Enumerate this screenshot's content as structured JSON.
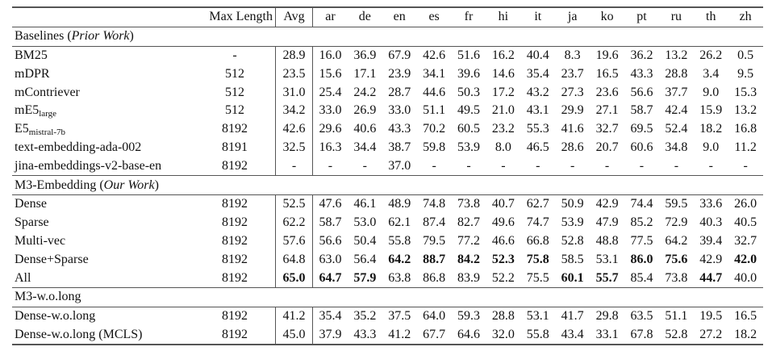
{
  "header": {
    "max_length": "Max Length",
    "avg": "Avg",
    "languages": [
      "ar",
      "de",
      "en",
      "es",
      "fr",
      "hi",
      "it",
      "ja",
      "ko",
      "pt",
      "ru",
      "th",
      "zh"
    ]
  },
  "sections": [
    {
      "title_prefix": "Baselines (",
      "title_italic": "Prior Work",
      "title_suffix": ")",
      "rows": [
        {
          "name": "BM25",
          "sub": "",
          "max_length": "-",
          "avg": "28.9",
          "values": [
            "16.0",
            "36.9",
            "67.9",
            "42.6",
            "51.6",
            "16.2",
            "40.4",
            "8.3",
            "19.6",
            "36.2",
            "13.2",
            "26.2",
            "0.5"
          ],
          "bold": []
        },
        {
          "name": "mDPR",
          "sub": "",
          "max_length": "512",
          "avg": "23.5",
          "values": [
            "15.6",
            "17.1",
            "23.9",
            "34.1",
            "39.6",
            "14.6",
            "35.4",
            "23.7",
            "16.5",
            "43.3",
            "28.8",
            "3.4",
            "9.5"
          ],
          "bold": []
        },
        {
          "name": "mContriever",
          "sub": "",
          "max_length": "512",
          "avg": "31.0",
          "values": [
            "25.4",
            "24.2",
            "28.7",
            "44.6",
            "50.3",
            "17.2",
            "43.2",
            "27.3",
            "23.6",
            "56.6",
            "37.7",
            "9.0",
            "15.3"
          ],
          "bold": []
        },
        {
          "name": "mE5",
          "sub": "large",
          "max_length": "512",
          "avg": "34.2",
          "values": [
            "33.0",
            "26.9",
            "33.0",
            "51.1",
            "49.5",
            "21.0",
            "43.1",
            "29.9",
            "27.1",
            "58.7",
            "42.4",
            "15.9",
            "13.2"
          ],
          "bold": []
        },
        {
          "name": "E5",
          "sub": "mistral-7b",
          "max_length": "8192",
          "avg": "42.6",
          "values": [
            "29.6",
            "40.6",
            "43.3",
            "70.2",
            "60.5",
            "23.2",
            "55.3",
            "41.6",
            "32.7",
            "69.5",
            "52.4",
            "18.2",
            "16.8"
          ],
          "bold": []
        },
        {
          "name": "text-embedding-ada-002",
          "sub": "",
          "max_length": "8191",
          "avg": "32.5",
          "values": [
            "16.3",
            "34.4",
            "38.7",
            "59.8",
            "53.9",
            "8.0",
            "46.5",
            "28.6",
            "20.7",
            "60.6",
            "34.8",
            "9.0",
            "11.2"
          ],
          "bold": []
        },
        {
          "name": "jina-embeddings-v2-base-en",
          "sub": "",
          "max_length": "8192",
          "avg": "-",
          "values": [
            "-",
            "-",
            "37.0",
            "-",
            "-",
            "-",
            "-",
            "-",
            "-",
            "-",
            "-",
            "-",
            "-"
          ],
          "bold": []
        }
      ]
    },
    {
      "title_prefix": "M3-Embedding (",
      "title_italic": "Our Work",
      "title_suffix": ")",
      "rows": [
        {
          "name": "Dense",
          "sub": "",
          "max_length": "8192",
          "avg": "52.5",
          "values": [
            "47.6",
            "46.1",
            "48.9",
            "74.8",
            "73.8",
            "40.7",
            "62.7",
            "50.9",
            "42.9",
            "74.4",
            "59.5",
            "33.6",
            "26.0"
          ],
          "bold": []
        },
        {
          "name": "Sparse",
          "sub": "",
          "max_length": "8192",
          "avg": "62.2",
          "values": [
            "58.7",
            "53.0",
            "62.1",
            "87.4",
            "82.7",
            "49.6",
            "74.7",
            "53.9",
            "47.9",
            "85.2",
            "72.9",
            "40.3",
            "40.5"
          ],
          "bold": []
        },
        {
          "name": "Multi-vec",
          "sub": "",
          "max_length": "8192",
          "avg": "57.6",
          "values": [
            "56.6",
            "50.4",
            "55.8",
            "79.5",
            "77.2",
            "46.6",
            "66.8",
            "52.8",
            "48.8",
            "77.5",
            "64.2",
            "39.4",
            "32.7"
          ],
          "bold": []
        },
        {
          "name": "Dense+Sparse",
          "sub": "",
          "max_length": "8192",
          "avg": "64.8",
          "values": [
            "63.0",
            "56.4",
            "64.2",
            "88.7",
            "84.2",
            "52.3",
            "75.8",
            "58.5",
            "53.1",
            "86.0",
            "75.6",
            "42.9",
            "42.0"
          ],
          "bold": [
            "en",
            "es",
            "fr",
            "hi",
            "it",
            "pt",
            "ru",
            "zh"
          ]
        },
        {
          "name": "All",
          "sub": "",
          "max_length": "8192",
          "avg": "65.0",
          "values": [
            "64.7",
            "57.9",
            "63.8",
            "86.8",
            "83.9",
            "52.2",
            "75.5",
            "60.1",
            "55.7",
            "85.4",
            "73.8",
            "44.7",
            "40.0"
          ],
          "bold": [
            "avg",
            "ar",
            "de",
            "ja",
            "ko",
            "th"
          ]
        }
      ]
    },
    {
      "title_prefix": "M3-w.o.long",
      "title_italic": "",
      "title_suffix": "",
      "rows": [
        {
          "name": "Dense-w.o.long",
          "sub": "",
          "max_length": "8192",
          "avg": "41.2",
          "values": [
            "35.4",
            "35.2",
            "37.5",
            "64.0",
            "59.3",
            "28.8",
            "53.1",
            "41.7",
            "29.8",
            "63.5",
            "51.1",
            "19.5",
            "16.5"
          ],
          "bold": []
        },
        {
          "name": "Dense-w.o.long (MCLS)",
          "sub": "",
          "max_length": "8192",
          "avg": "45.0",
          "values": [
            "37.9",
            "43.3",
            "41.2",
            "67.7",
            "64.6",
            "32.0",
            "55.8",
            "43.4",
            "33.1",
            "67.8",
            "52.8",
            "27.2",
            "18.2"
          ],
          "bold": []
        }
      ]
    }
  ]
}
